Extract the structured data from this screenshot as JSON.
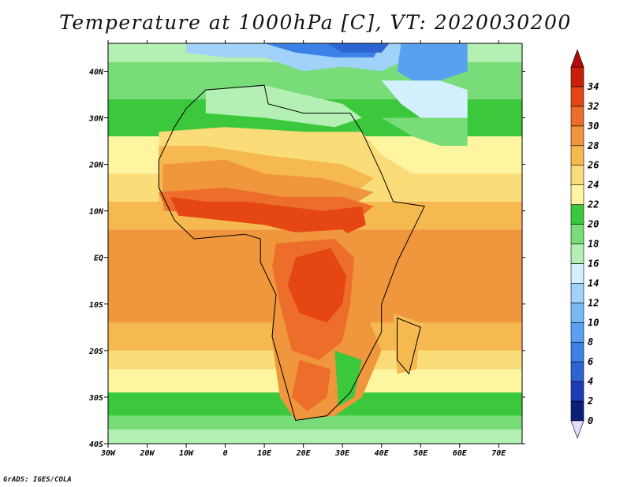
{
  "title": "Temperature at 1000hPa [C], VT: 2020030200",
  "footer": "GrADS: IGES/COLA",
  "map": {
    "lon_range": [
      -30,
      76
    ],
    "lat_range": [
      -40,
      46
    ],
    "lon_ticks": [
      {
        "value": -30,
        "label": "30W"
      },
      {
        "value": -20,
        "label": "20W"
      },
      {
        "value": -10,
        "label": "10W"
      },
      {
        "value": 0,
        "label": "0"
      },
      {
        "value": 10,
        "label": "10E"
      },
      {
        "value": 20,
        "label": "20E"
      },
      {
        "value": 30,
        "label": "30E"
      },
      {
        "value": 40,
        "label": "40E"
      },
      {
        "value": 50,
        "label": "50E"
      },
      {
        "value": 60,
        "label": "60E"
      },
      {
        "value": 70,
        "label": "70E"
      }
    ],
    "lat_ticks": [
      {
        "value": 40,
        "label": "40N"
      },
      {
        "value": 30,
        "label": "30N"
      },
      {
        "value": 20,
        "label": "20N"
      },
      {
        "value": 10,
        "label": "10N"
      },
      {
        "value": 0,
        "label": "EQ"
      },
      {
        "value": -10,
        "label": "10S"
      },
      {
        "value": -20,
        "label": "20S"
      },
      {
        "value": -30,
        "label": "30S"
      },
      {
        "value": -40,
        "label": "40S"
      }
    ]
  },
  "colorbar": {
    "levels": [
      0,
      2,
      4,
      6,
      8,
      10,
      12,
      14,
      16,
      18,
      20,
      22,
      24,
      26,
      28,
      30,
      32,
      34
    ],
    "colors": [
      "#0a1f78",
      "#1e3cb4",
      "#2d64d2",
      "#3c82e6",
      "#5aa0f0",
      "#78b9f5",
      "#a0d2fa",
      "#d2f0ff",
      "#b4f0b4",
      "#78dc78",
      "#3cc83c",
      "#fff5a0",
      "#fadc78",
      "#f5b950",
      "#f0963c",
      "#ec6e2a",
      "#e64614",
      "#c81e0a"
    ],
    "under_color": "#e6dcff",
    "over_color": "#b40a0a"
  }
}
